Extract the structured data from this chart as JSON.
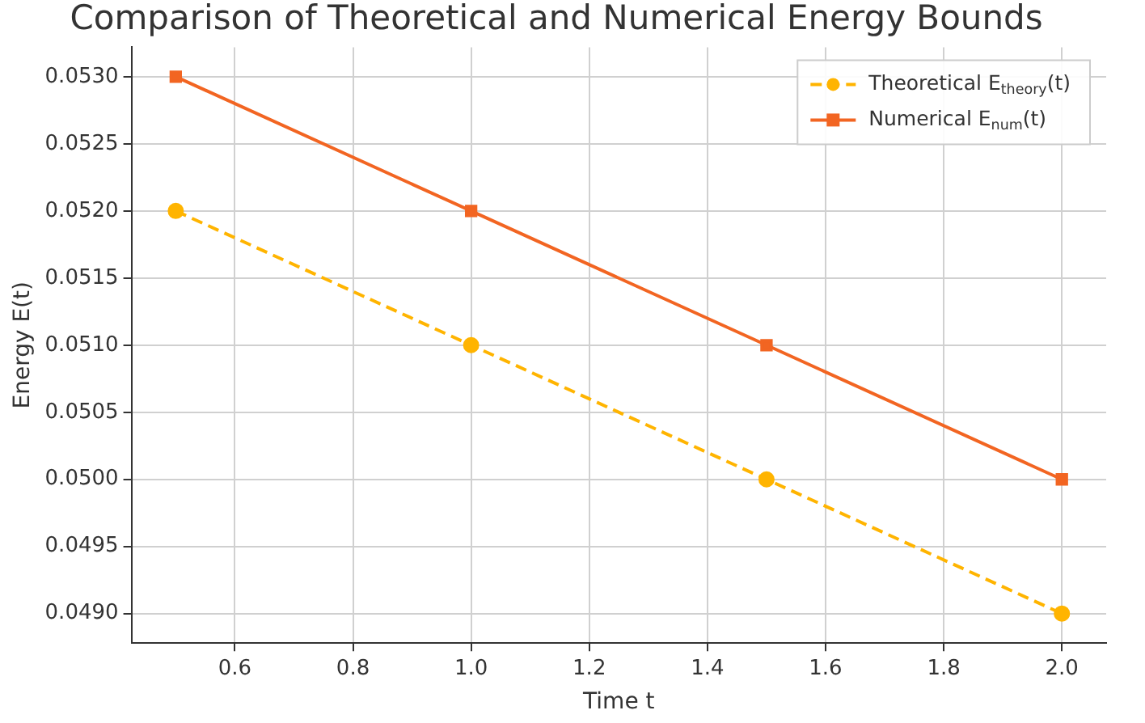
{
  "chart_data": {
    "type": "line",
    "title": "Comparison of Theoretical and Numerical Energy Bounds",
    "xlabel": "Time t",
    "ylabel": "Energy E(t)",
    "x": [
      0.5,
      1.0,
      1.5,
      2.0
    ],
    "series": [
      {
        "name": "Theoretical E$_{theory}$(t)",
        "color": "#ffb400",
        "values": [
          0.052,
          0.051,
          0.05,
          0.049
        ],
        "marker": "circle",
        "line_style": "dashed"
      },
      {
        "name": "Numerical E$_{num}$(t)",
        "color": "#f26522",
        "values": [
          0.053,
          0.052,
          0.051,
          0.05
        ],
        "marker": "square",
        "line_style": "solid"
      }
    ],
    "xlim": [
      0.425,
      2.075
    ],
    "xticks": [
      {
        "value": 0.6,
        "label": "0.6"
      },
      {
        "value": 0.8,
        "label": "0.8"
      },
      {
        "value": 1.0,
        "label": "1.0"
      },
      {
        "value": 1.2,
        "label": "1.2"
      },
      {
        "value": 1.4,
        "label": "1.4"
      },
      {
        "value": 1.6,
        "label": "1.6"
      },
      {
        "value": 1.8,
        "label": "1.8"
      },
      {
        "value": 2.0,
        "label": "2.0"
      }
    ],
    "ylim": [
      0.04878,
      0.05322
    ],
    "yticks": [
      {
        "value": 0.049,
        "label": "0.0490"
      },
      {
        "value": 0.0495,
        "label": "0.0495"
      },
      {
        "value": 0.05,
        "label": "0.0500"
      },
      {
        "value": 0.0505,
        "label": "0.0505"
      },
      {
        "value": 0.051,
        "label": "0.0510"
      },
      {
        "value": 0.0515,
        "label": "0.0515"
      },
      {
        "value": 0.052,
        "label": "0.0520"
      },
      {
        "value": 0.0525,
        "label": "0.0525"
      },
      {
        "value": 0.053,
        "label": "0.0530"
      }
    ],
    "grid": true,
    "legend": "top right"
  }
}
